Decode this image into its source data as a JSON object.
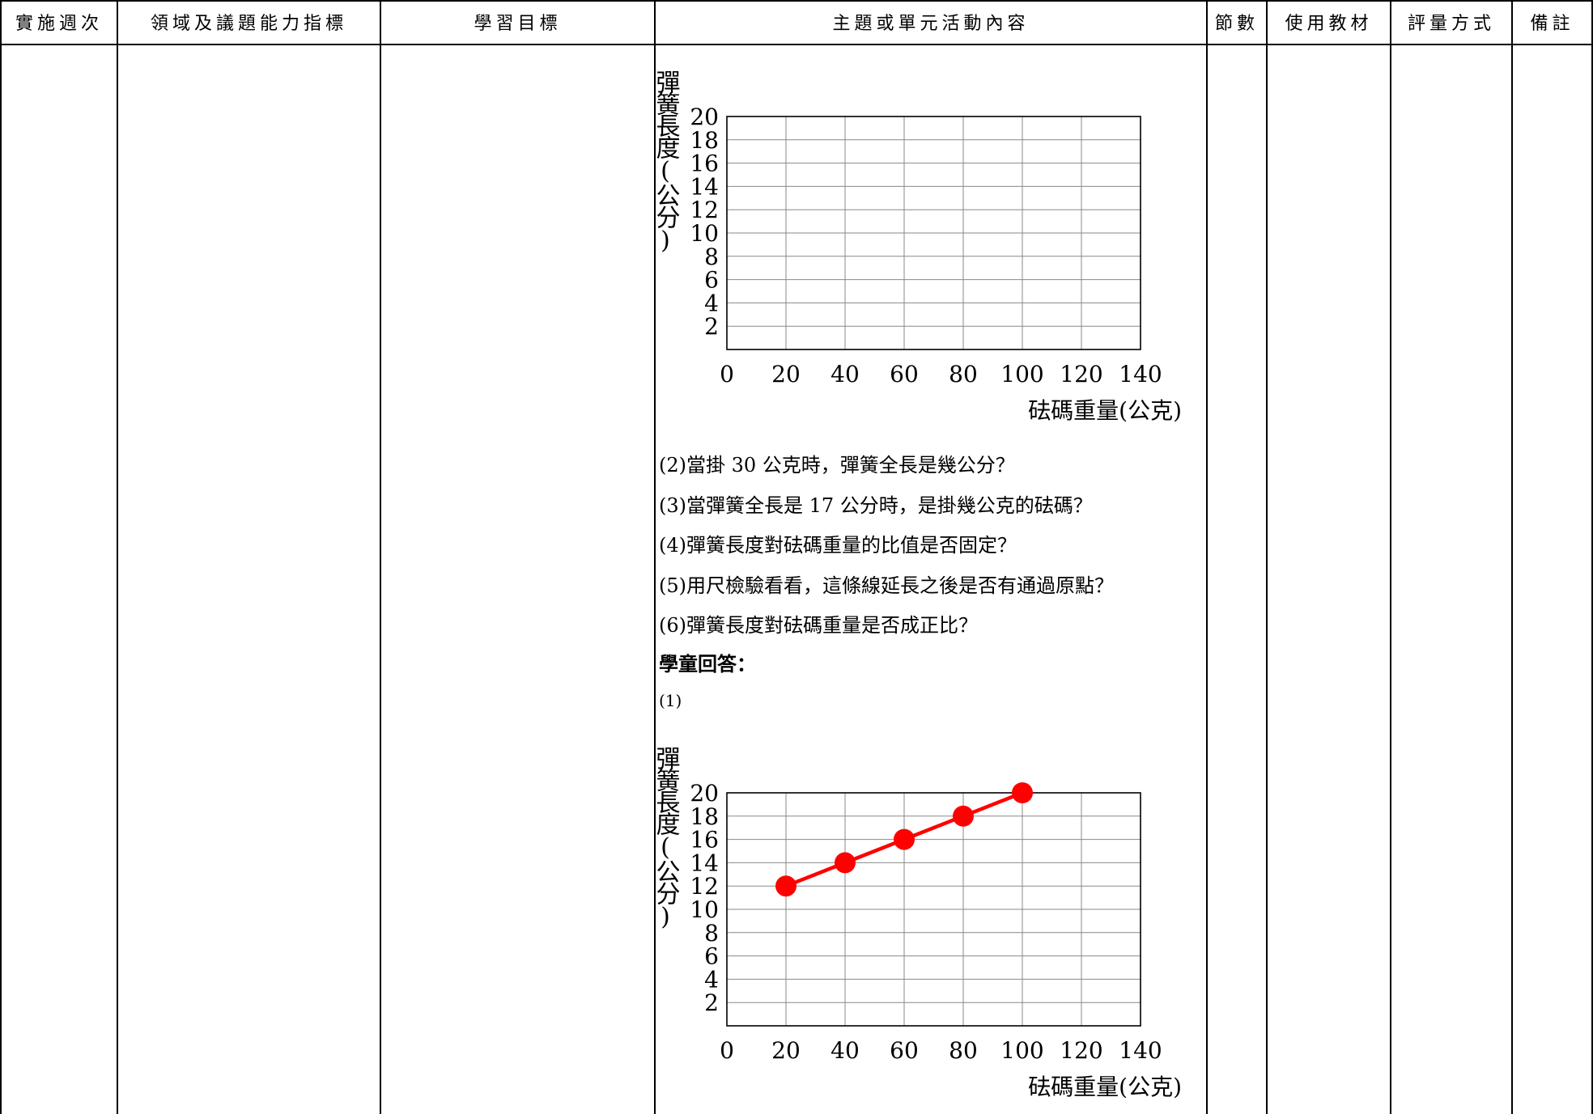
{
  "header": {
    "week": "實施週次",
    "competency": "領域及議題能力指標",
    "objectives": "學習目標",
    "content": "主題或單元活動內容",
    "periods": "節數",
    "materials": "使用教材",
    "assessment": "評量方式",
    "notes": "備註"
  },
  "questions": [
    "(2)當掛 30 公克時，彈簧全長是幾公分？",
    "(3)當彈簧全長是 17 公分時，是掛幾公克的砝碼？",
    "(4)彈簧長度對砝碼重量的比值是否固定？",
    "(5)用尺檢驗看看，這條線延長之後是否有通過原點？",
    "(6)彈簧長度對砝碼重量是否成正比？"
  ],
  "answers": {
    "heading": "學童回答：",
    "part1_label": "(1)"
  },
  "colors": {
    "series": "#ff0000",
    "grid": "#888888"
  },
  "chart_data": [
    {
      "type": "line",
      "ylabel": "彈簧長度(公分)",
      "xlabel": "砝碼重量(公克)",
      "x_ticks": [
        "0",
        "20",
        "40",
        "60",
        "80",
        "100",
        "120",
        "140"
      ],
      "y_ticks": [
        "2",
        "4",
        "6",
        "8",
        "10",
        "12",
        "14",
        "16",
        "18",
        "20"
      ],
      "xlim": [
        0,
        140
      ],
      "ylim": [
        0,
        20
      ],
      "grid": true,
      "series": []
    },
    {
      "type": "line",
      "ylabel": "彈簧長度(公分)",
      "xlabel": "砝碼重量(公克)",
      "x_ticks": [
        "0",
        "20",
        "40",
        "60",
        "80",
        "100",
        "120",
        "140"
      ],
      "y_ticks": [
        "2",
        "4",
        "6",
        "8",
        "10",
        "12",
        "14",
        "16",
        "18",
        "20"
      ],
      "xlim": [
        0,
        140
      ],
      "ylim": [
        0,
        20
      ],
      "grid": true,
      "series": [
        {
          "x": [
            20,
            40,
            60,
            80,
            100
          ],
          "y": [
            12,
            14,
            16,
            18,
            20
          ]
        }
      ]
    }
  ]
}
